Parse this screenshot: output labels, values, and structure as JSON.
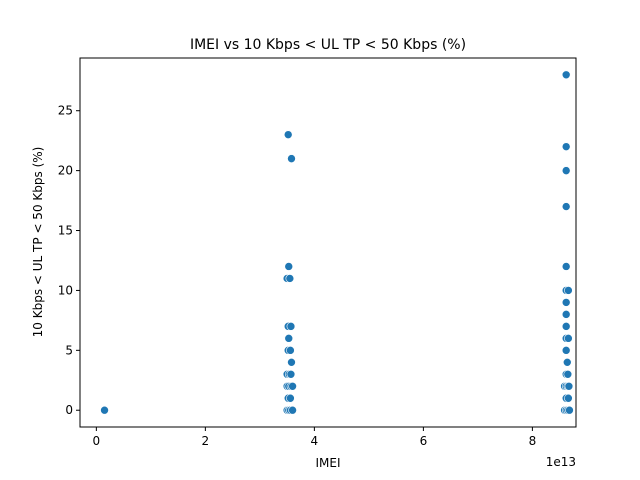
{
  "chart_data": {
    "type": "scatter",
    "title": "IMEI vs 10 Kbps < UL TP < 50 Kbps (%)",
    "xlabel": "IMEI",
    "ylabel": "10 Kbps < UL TP < 50 Kbps (%)",
    "x_offset_label": "1e13",
    "xlim": [
      -0.3,
      8.8
    ],
    "ylim": [
      -1.4,
      29.4
    ],
    "xticks": [
      0,
      2,
      4,
      6,
      8
    ],
    "xtick_labels": [
      "0",
      "2",
      "4",
      "6",
      "8"
    ],
    "yticks": [
      0,
      5,
      10,
      15,
      20,
      25
    ],
    "ytick_labels": [
      "0",
      "5",
      "10",
      "15",
      "20",
      "25"
    ],
    "grid": false,
    "marker_color": "#1f77b4",
    "points": [
      {
        "x": 0.15,
        "y": 0
      },
      {
        "x": 3.52,
        "y": 23
      },
      {
        "x": 3.58,
        "y": 21
      },
      {
        "x": 3.53,
        "y": 12
      },
      {
        "x": 3.5,
        "y": 11
      },
      {
        "x": 3.55,
        "y": 11
      },
      {
        "x": 3.52,
        "y": 7
      },
      {
        "x": 3.57,
        "y": 7
      },
      {
        "x": 3.53,
        "y": 6
      },
      {
        "x": 3.52,
        "y": 5
      },
      {
        "x": 3.56,
        "y": 5
      },
      {
        "x": 3.58,
        "y": 4
      },
      {
        "x": 3.5,
        "y": 3
      },
      {
        "x": 3.54,
        "y": 3
      },
      {
        "x": 3.57,
        "y": 3
      },
      {
        "x": 3.5,
        "y": 2
      },
      {
        "x": 3.53,
        "y": 2
      },
      {
        "x": 3.57,
        "y": 2
      },
      {
        "x": 3.6,
        "y": 2
      },
      {
        "x": 3.52,
        "y": 1
      },
      {
        "x": 3.56,
        "y": 1
      },
      {
        "x": 3.5,
        "y": 0
      },
      {
        "x": 3.53,
        "y": 0
      },
      {
        "x": 3.56,
        "y": 0
      },
      {
        "x": 3.6,
        "y": 0
      },
      {
        "x": 8.62,
        "y": 28
      },
      {
        "x": 8.62,
        "y": 22
      },
      {
        "x": 8.62,
        "y": 20
      },
      {
        "x": 8.62,
        "y": 17
      },
      {
        "x": 8.62,
        "y": 12
      },
      {
        "x": 8.62,
        "y": 10
      },
      {
        "x": 8.66,
        "y": 10
      },
      {
        "x": 8.62,
        "y": 9
      },
      {
        "x": 8.62,
        "y": 8
      },
      {
        "x": 8.62,
        "y": 7
      },
      {
        "x": 8.62,
        "y": 6
      },
      {
        "x": 8.66,
        "y": 6
      },
      {
        "x": 8.62,
        "y": 5
      },
      {
        "x": 8.64,
        "y": 4
      },
      {
        "x": 8.62,
        "y": 3
      },
      {
        "x": 8.65,
        "y": 3
      },
      {
        "x": 8.59,
        "y": 2
      },
      {
        "x": 8.62,
        "y": 2
      },
      {
        "x": 8.65,
        "y": 2
      },
      {
        "x": 8.67,
        "y": 2
      },
      {
        "x": 8.62,
        "y": 1
      },
      {
        "x": 8.66,
        "y": 1
      },
      {
        "x": 8.59,
        "y": 0
      },
      {
        "x": 8.62,
        "y": 0
      },
      {
        "x": 8.65,
        "y": 0
      },
      {
        "x": 8.68,
        "y": 0
      }
    ]
  }
}
